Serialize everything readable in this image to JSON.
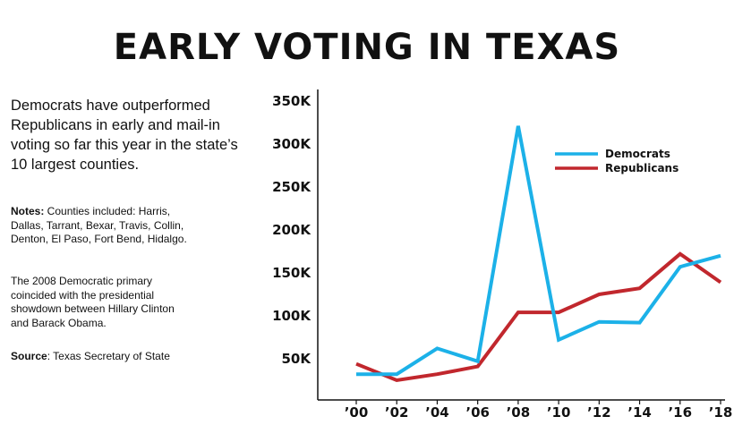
{
  "title": "EARLY VOTING IN TEXAS",
  "intro": "Democrats have outperformed Republicans in early and mail-in voting so far this year in the state’s 10 largest counties.",
  "notes": {
    "label": "Notes:",
    "text": " Counties included: Harris, Dallas, Tarrant, Bexar, Travis, Collin, Denton, El Paso, Fort Bend, Hidalgo."
  },
  "primary_note": "The 2008 Democratic primary coincided with the presidential showdown between Hillary Clinton and Barack Obama.",
  "source": {
    "label": "Source",
    "text": ": Texas Secretary of State"
  },
  "colors": {
    "democrats": "#1cb1e8",
    "republicans": "#c1272d",
    "axis": "#111111"
  },
  "chart_data": {
    "type": "line",
    "x": [
      "’00",
      "’02",
      "’04",
      "’06",
      "’08",
      "’10",
      "’12",
      "’14",
      "’16",
      "’18"
    ],
    "ytick_labels": [
      "50K",
      "100K",
      "150K",
      "200K",
      "250K",
      "300K",
      "350K"
    ],
    "yticks": [
      50000,
      100000,
      150000,
      200000,
      250000,
      300000,
      350000
    ],
    "ylim": [
      0,
      350000
    ],
    "legend_position": "top-right",
    "grid": false,
    "series": [
      {
        "name": "Democrats",
        "color": "#1cb1e8",
        "values": [
          31000,
          31000,
          61000,
          46000,
          320000,
          71000,
          92000,
          91000,
          156000,
          169000
        ]
      },
      {
        "name": "Republicans",
        "color": "#c1272d",
        "values": [
          43000,
          24000,
          31000,
          40000,
          103000,
          103000,
          124000,
          131000,
          171000,
          138000
        ]
      }
    ]
  }
}
